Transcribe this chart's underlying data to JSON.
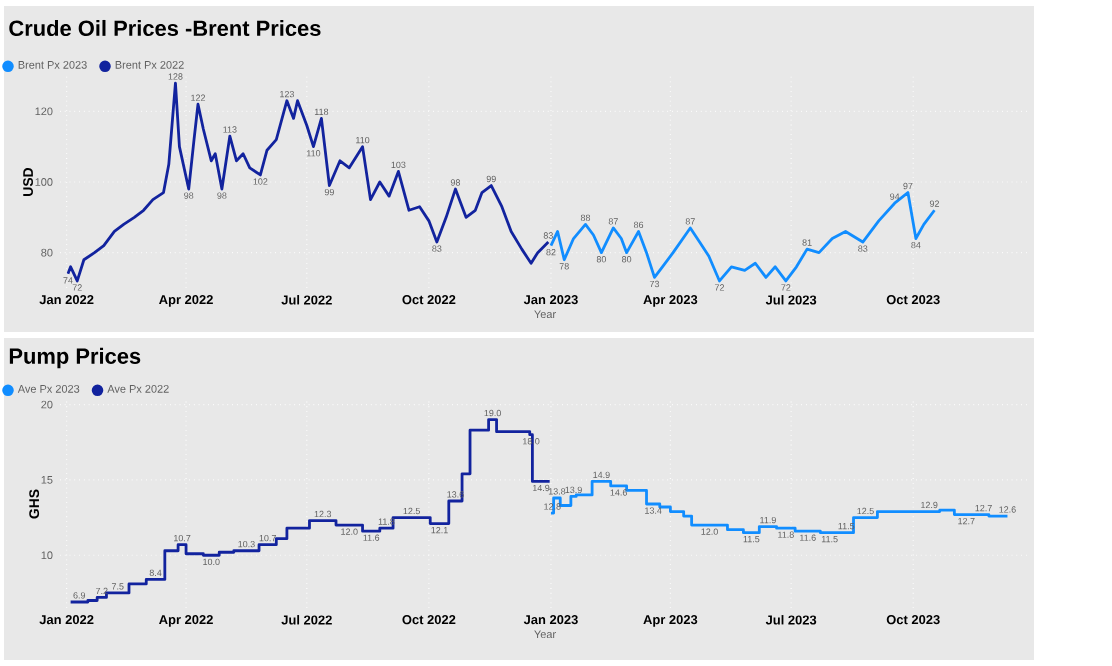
{
  "chart_data": [
    {
      "type": "line",
      "title": "Crude Oil Prices -Brent Prices",
      "xlabel": "Year",
      "ylabel": "USD",
      "grid": true,
      "legend": "top left",
      "xlim": [
        "2021-12-27",
        "2023-12-28"
      ],
      "ylim": [
        70,
        130
      ],
      "xticks": [
        {
          "value": "2022-01-01",
          "label": "Jan 2022"
        },
        {
          "value": "2022-04-01",
          "label": "Apr 2022"
        },
        {
          "value": "2022-07-01",
          "label": "Jul 2022"
        },
        {
          "value": "2022-10-01",
          "label": "Oct 2022"
        },
        {
          "value": "2023-01-01",
          "label": "Jan 2023"
        },
        {
          "value": "2023-04-01",
          "label": "Apr 2023"
        },
        {
          "value": "2023-07-01",
          "label": "Jul 2023"
        },
        {
          "value": "2023-10-01",
          "label": "Oct 2023"
        }
      ],
      "yticks": [
        80,
        100,
        120
      ],
      "series": [
        {
          "name": "Brent Px 2023",
          "color": "#118dff",
          "x": [
            "2023-01-01",
            "2023-01-06",
            "2023-01-11",
            "2023-01-18",
            "2023-01-27",
            "2023-02-02",
            "2023-02-08",
            "2023-02-17",
            "2023-02-23",
            "2023-02-27",
            "2023-03-08",
            "2023-03-14",
            "2023-03-20",
            "2023-03-26",
            "2023-04-03",
            "2023-04-16",
            "2023-04-23",
            "2023-04-30",
            "2023-05-08",
            "2023-05-17",
            "2023-05-27",
            "2023-06-04",
            "2023-06-12",
            "2023-06-19",
            "2023-06-27",
            "2023-07-05",
            "2023-07-13",
            "2023-07-22",
            "2023-08-01",
            "2023-08-11",
            "2023-08-24",
            "2023-09-05",
            "2023-09-17",
            "2023-09-27",
            "2023-10-03",
            "2023-10-09",
            "2023-10-17"
          ],
          "values": [
            82,
            86,
            78,
            84,
            88,
            85,
            80,
            87,
            84,
            80,
            86,
            80,
            73,
            76,
            80,
            87,
            83,
            79,
            72,
            76,
            75,
            77,
            73,
            76,
            72,
            76,
            81,
            80,
            84,
            86,
            83,
            89,
            94,
            97,
            84,
            88,
            92
          ],
          "value_labels": [
            "82",
            null,
            "78",
            null,
            "88",
            null,
            "80",
            "87",
            null,
            "80",
            "86",
            null,
            "73",
            null,
            null,
            "87",
            null,
            null,
            "72",
            null,
            null,
            null,
            null,
            null,
            "72",
            null,
            "81",
            null,
            null,
            null,
            "83",
            null,
            "94",
            "97",
            "84",
            null,
            "92"
          ]
        },
        {
          "name": "Brent Px 2022",
          "color": "#12239e",
          "x": [
            "2022-01-02",
            "2022-01-04",
            "2022-01-09",
            "2022-01-14",
            "2022-01-22",
            "2022-01-29",
            "2022-02-06",
            "2022-02-13",
            "2022-02-21",
            "2022-02-28",
            "2022-03-07",
            "2022-03-15",
            "2022-03-19",
            "2022-03-24",
            "2022-03-27",
            "2022-04-03",
            "2022-04-07",
            "2022-04-10",
            "2022-04-14",
            "2022-04-20",
            "2022-04-23",
            "2022-04-28",
            "2022-05-04",
            "2022-05-09",
            "2022-05-14",
            "2022-05-19",
            "2022-05-27",
            "2022-06-01",
            "2022-06-08",
            "2022-06-16",
            "2022-06-21",
            "2022-06-24",
            "2022-07-01",
            "2022-07-06",
            "2022-07-12",
            "2022-07-18",
            "2022-07-26",
            "2022-08-02",
            "2022-08-12",
            "2022-08-18",
            "2022-08-25",
            "2022-09-01",
            "2022-09-08",
            "2022-09-16",
            "2022-09-24",
            "2022-10-01",
            "2022-10-07",
            "2022-10-14",
            "2022-10-21",
            "2022-10-29",
            "2022-11-05",
            "2022-11-10",
            "2022-11-17",
            "2022-11-25",
            "2022-12-02",
            "2022-12-10",
            "2022-12-17",
            "2022-12-22",
            "2022-12-30"
          ],
          "values": [
            74,
            76,
            72,
            78,
            80,
            82,
            86,
            88,
            90,
            92,
            95,
            97,
            105,
            128,
            110,
            98,
            112,
            122,
            115,
            106,
            108,
            98,
            113,
            106,
            108,
            104,
            102,
            109,
            112,
            123,
            118,
            123,
            116,
            110,
            118,
            99,
            106,
            104,
            110,
            95,
            100,
            96,
            103,
            92,
            93,
            89,
            83,
            90,
            98,
            90,
            92,
            97,
            99,
            93,
            86,
            81,
            77,
            80,
            83
          ],
          "value_labels": [
            "74",
            null,
            "72",
            null,
            null,
            null,
            null,
            null,
            null,
            null,
            null,
            null,
            null,
            "128",
            null,
            "98",
            null,
            "122",
            null,
            null,
            null,
            "98",
            "113",
            null,
            null,
            null,
            "102",
            null,
            null,
            "123",
            null,
            null,
            null,
            "110",
            "118",
            "99",
            null,
            null,
            "110",
            null,
            null,
            null,
            "103",
            null,
            null,
            null,
            "83",
            null,
            "98",
            null,
            null,
            null,
            "99",
            null,
            null,
            null,
            null,
            null,
            "83"
          ]
        }
      ]
    },
    {
      "type": "step",
      "title": "Pump Prices",
      "xlabel": "Year",
      "ylabel": "GHS",
      "grid": true,
      "legend": "top left",
      "xlim": [
        "2021-12-27",
        "2023-12-28"
      ],
      "ylim": [
        6.5,
        20.3
      ],
      "xticks": [
        {
          "value": "2022-01-01",
          "label": "Jan 2022"
        },
        {
          "value": "2022-04-01",
          "label": "Apr 2022"
        },
        {
          "value": "2022-07-01",
          "label": "Jul 2022"
        },
        {
          "value": "2022-10-01",
          "label": "Oct 2022"
        },
        {
          "value": "2023-01-01",
          "label": "Jan 2023"
        },
        {
          "value": "2023-04-01",
          "label": "Apr 2023"
        },
        {
          "value": "2023-07-01",
          "label": "Jul 2023"
        },
        {
          "value": "2023-10-01",
          "label": "Oct 2023"
        }
      ],
      "yticks": [
        10,
        15,
        20
      ],
      "series": [
        {
          "name": "Ave Px 2023",
          "color": "#118dff",
          "x": [
            "2023-01-01",
            "2023-01-03",
            "2023-01-08",
            "2023-01-16",
            "2023-01-20",
            "2023-02-01",
            "2023-02-15",
            "2023-02-27",
            "2023-03-14",
            "2023-03-24",
            "2023-04-01",
            "2023-04-11",
            "2023-04-17",
            "2023-05-14",
            "2023-05-26",
            "2023-06-07",
            "2023-06-20",
            "2023-07-04",
            "2023-07-23",
            "2023-08-06",
            "2023-08-17",
            "2023-09-04",
            "2023-10-05",
            "2023-10-21",
            "2023-11-01",
            "2023-11-19",
            "2023-11-27",
            "2023-12-11"
          ],
          "values": [
            12.8,
            13.8,
            13.3,
            13.9,
            14.0,
            14.9,
            14.6,
            14.3,
            13.4,
            13.2,
            12.9,
            12.6,
            12.0,
            11.7,
            11.5,
            11.9,
            11.8,
            11.6,
            11.5,
            11.5,
            12.5,
            12.9,
            12.9,
            13.0,
            12.7,
            12.7,
            12.6,
            12.6
          ],
          "value_labels": [
            "12.8",
            "13.8",
            null,
            "13.9",
            null,
            "14.9",
            "14.6",
            null,
            "13.4",
            null,
            null,
            null,
            "12.0",
            null,
            "11.5",
            "11.9",
            "11.8",
            "11.6",
            "11.5",
            "11.5",
            "12.5",
            null,
            "12.9",
            null,
            "12.7",
            "12.7",
            null,
            "12.6"
          ]
        },
        {
          "name": "Ave Px 2022",
          "color": "#12239e",
          "x": [
            "2022-01-04",
            "2022-01-17",
            "2022-01-24",
            "2022-01-31",
            "2022-02-17",
            "2022-03-02",
            "2022-03-16",
            "2022-03-26",
            "2022-04-01",
            "2022-04-14",
            "2022-04-26",
            "2022-05-07",
            "2022-05-26",
            "2022-06-08",
            "2022-06-16",
            "2022-07-03",
            "2022-07-23",
            "2022-08-12",
            "2022-08-25",
            "2022-09-04",
            "2022-10-02",
            "2022-10-16",
            "2022-10-26",
            "2022-11-01",
            "2022-11-15",
            "2022-11-21",
            "2022-12-16",
            "2022-12-18",
            "2022-12-31"
          ],
          "values": [
            6.9,
            7.0,
            7.2,
            7.5,
            8.1,
            8.4,
            10.3,
            10.7,
            10.1,
            10.0,
            10.2,
            10.3,
            10.7,
            11.1,
            11.8,
            12.3,
            12.0,
            11.6,
            11.8,
            12.5,
            12.1,
            13.6,
            15.4,
            18.3,
            19.0,
            18.2,
            18.0,
            14.9,
            14.9
          ],
          "value_labels": [
            "6.9",
            null,
            "7.2",
            "7.5",
            null,
            "8.4",
            null,
            "10.7",
            null,
            "10.0",
            null,
            "10.3",
            "10.7",
            null,
            null,
            "12.3",
            "12.0",
            "11.6",
            "11.8",
            "12.5",
            "12.1",
            "13.6",
            null,
            null,
            "19.0",
            null,
            "18.0",
            "14.9",
            null
          ]
        }
      ]
    }
  ]
}
